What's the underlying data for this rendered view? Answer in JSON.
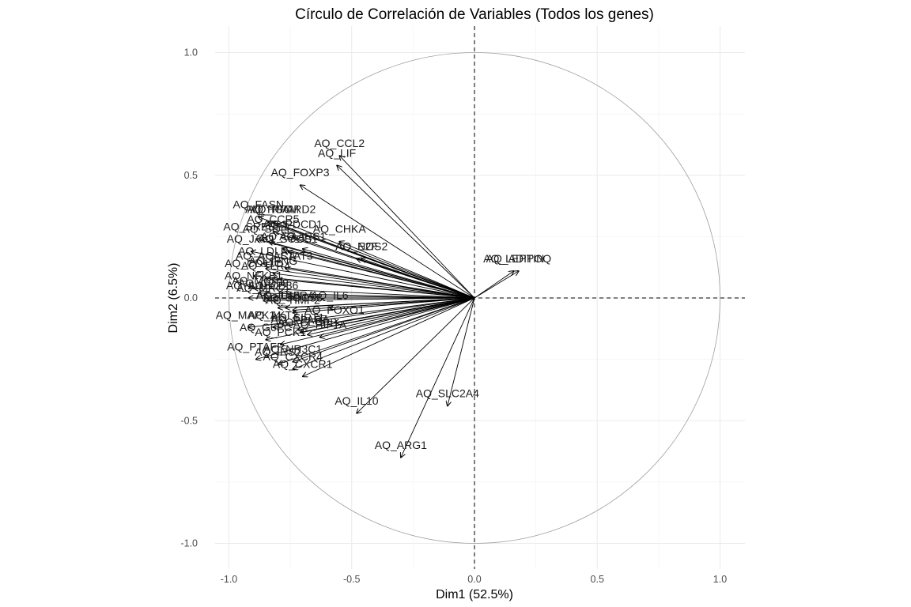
{
  "chart_data": {
    "type": "scatter",
    "subtype": "pca-correlation-circle",
    "title": "Círculo de Correlación de Variables (Todos los genes)",
    "xlabel": "Dim1 (52.5%)",
    "ylabel": "Dim2 (6.5%)",
    "xlim": [
      -1.1,
      1.1
    ],
    "ylim": [
      -1.1,
      1.1
    ],
    "x_ticks": [
      "-1.0",
      "-0.5",
      "0.0",
      "0.5",
      "1.0"
    ],
    "y_ticks": [
      "1.0",
      "0.5",
      "0.0",
      "-0.5",
      "-1.0"
    ],
    "grid": true,
    "reference_lines": "dashed lines at x = 0 and y = 0",
    "unit_circle": true,
    "variables": [
      {
        "name": "AQ_CCL2",
        "x": -0.55,
        "y": 0.58
      },
      {
        "name": "AQ_LIF",
        "x": -0.56,
        "y": 0.54
      },
      {
        "name": "AQ_FOXP3",
        "x": -0.71,
        "y": 0.46
      },
      {
        "name": "AQ_FASN",
        "x": -0.88,
        "y": 0.33
      },
      {
        "name": "AQ_PGC",
        "x": -0.84,
        "y": 0.31
      },
      {
        "name": "AQ_TFAM",
        "x": -0.82,
        "y": 0.31
      },
      {
        "name": "AQ_PPARD2",
        "x": -0.78,
        "y": 0.31
      },
      {
        "name": "AQ_CCR5",
        "x": -0.82,
        "y": 0.27
      },
      {
        "name": "AQ_PDCD1",
        "x": -0.74,
        "y": 0.25
      },
      {
        "name": "AQ_CHKA",
        "x": -0.55,
        "y": 0.23
      },
      {
        "name": "AQ_SREBF1",
        "x": -0.89,
        "y": 0.24
      },
      {
        "name": "AQ_SQLE",
        "x": -0.84,
        "y": 0.23
      },
      {
        "name": "AQ_IRS1",
        "x": -0.7,
        "y": 0.2
      },
      {
        "name": "AQ_SAA",
        "x": -0.78,
        "y": 0.2
      },
      {
        "name": "AQ_JAK1",
        "x": -0.91,
        "y": 0.19
      },
      {
        "name": "AQ_SOCS1",
        "x": -0.76,
        "y": 0.19
      },
      {
        "name": "AQ_NOS2",
        "x": -0.46,
        "y": 0.16
      },
      {
        "name": "AQ_E2F",
        "x": -0.48,
        "y": 0.16
      },
      {
        "name": "AQ_LDLR",
        "x": -0.86,
        "y": 0.14
      },
      {
        "name": "AQ_STAT3",
        "x": -0.77,
        "y": 0.12
      },
      {
        "name": "AQ_ACACA",
        "x": -0.85,
        "y": 0.12
      },
      {
        "name": "AQ_IFNG",
        "x": -0.82,
        "y": 0.1
      },
      {
        "name": "AQ_ADIPOQ",
        "x": 0.18,
        "y": 0.11
      },
      {
        "name": "AQ_LEPTIN",
        "x": 0.16,
        "y": 0.11
      },
      {
        "name": "AQ_CD11C",
        "x": -0.9,
        "y": 0.09
      },
      {
        "name": "AQ_TLR4",
        "x": -0.85,
        "y": 0.08
      },
      {
        "name": "AQ_NFKB1",
        "x": -0.9,
        "y": 0.04
      },
      {
        "name": "AQ_MCP1",
        "x": -0.88,
        "y": 0.02
      },
      {
        "name": "AQ_CD68",
        "x": -0.86,
        "y": 0.01
      },
      {
        "name": "AQ_CD36",
        "x": -0.82,
        "y": 0.0
      },
      {
        "name": "AQ_IL1B",
        "x": -0.92,
        "y": 0.0
      },
      {
        "name": "AQ_MRC1",
        "x": -0.86,
        "y": -0.01
      },
      {
        "name": "AQ_IL6",
        "x": -0.59,
        "y": -0.04
      },
      {
        "name": "AQ_TNF",
        "x": -0.8,
        "y": -0.04
      },
      {
        "name": "AQ_IL10RA",
        "x": -0.77,
        "y": -0.04
      },
      {
        "name": "AQ_SOCS3",
        "x": -0.74,
        "y": -0.05
      },
      {
        "name": "AQ_TIMP2",
        "x": -0.74,
        "y": -0.06
      },
      {
        "name": "AQ_FOXO1",
        "x": -0.57,
        "y": -0.1
      },
      {
        "name": "AQ_MAPK14",
        "x": -0.92,
        "y": -0.12
      },
      {
        "name": "AQ_AKT2",
        "x": -0.82,
        "y": -0.12
      },
      {
        "name": "AQ_SIRT1",
        "x": -0.72,
        "y": -0.13
      },
      {
        "name": "AQ_PPARA",
        "x": -0.71,
        "y": -0.14
      },
      {
        "name": "AQ_CEBPB",
        "x": -0.68,
        "y": -0.15
      },
      {
        "name": "AQ_HIF1A",
        "x": -0.63,
        "y": -0.16
      },
      {
        "name": "AQ_G6PC",
        "x": -0.85,
        "y": -0.17
      },
      {
        "name": "AQ_PCK1",
        "x": -0.79,
        "y": -0.19
      },
      {
        "name": "AQ_PTAFR",
        "x": -0.89,
        "y": -0.25
      },
      {
        "name": "AQ_IRS2",
        "x": -0.8,
        "y": -0.27
      },
      {
        "name": "AQ_NR3C1",
        "x": -0.74,
        "y": -0.26
      },
      {
        "name": "AQ_CXCR4",
        "x": -0.74,
        "y": -0.29
      },
      {
        "name": "AQ_CXCR1",
        "x": -0.7,
        "y": -0.32
      },
      {
        "name": "AQ_IL10",
        "x": -0.48,
        "y": -0.47
      },
      {
        "name": "AQ_SLC2A4",
        "x": -0.11,
        "y": -0.44
      },
      {
        "name": "AQ_ARG1",
        "x": -0.3,
        "y": -0.65
      }
    ]
  },
  "label_strings": {
    "title": "Círculo de Correlación de Variables (Todos los genes)",
    "xlabel": "Dim1 (52.5%)",
    "ylabel": "Dim2 (6.5%)"
  },
  "colors": {
    "arrow": "#000000",
    "circle": "#a0a0a0",
    "grid": "#ebebeb",
    "text": "#1a1a1a"
  }
}
